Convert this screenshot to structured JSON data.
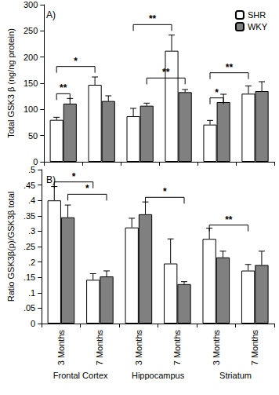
{
  "chart_data": [
    {
      "type": "bar",
      "panel": "A)",
      "y_label": "Total GSK3 β (ng/ng protein)",
      "categories": [
        "3 Months",
        "7 Months",
        "3 Months",
        "7 Months",
        "3 Months",
        "7 Months"
      ],
      "groups": [
        "Frontal Cortex",
        "Hippocampus",
        "Striatum"
      ],
      "series": [
        {
          "name": "SHR",
          "color": "#ffffff",
          "values": [
            80,
            147,
            87,
            212,
            71,
            130
          ],
          "errors": [
            5,
            15,
            15,
            30,
            8,
            15
          ]
        },
        {
          "name": "WKY",
          "color": "#808080",
          "values": [
            111,
            116,
            107,
            133,
            114,
            135
          ],
          "errors": [
            10,
            10,
            5,
            5,
            15,
            18
          ]
        }
      ],
      "ylim": [
        0,
        300
      ],
      "yticks": [
        0,
        50,
        100,
        150,
        200,
        250,
        300
      ],
      "grid": false,
      "legend": "upper right",
      "tick_labels": "y",
      "annotations": [
        {
          "text": "*",
          "from": [
            0,
            0
          ],
          "to": [
            1,
            0
          ],
          "y": 182
        },
        {
          "text": "**",
          "from": [
            0,
            0
          ],
          "to": [
            0,
            1
          ],
          "y": 130
        },
        {
          "text": "**",
          "from": [
            2,
            0
          ],
          "to": [
            3,
            0
          ],
          "y": 262
        },
        {
          "text": "**",
          "from": [
            2,
            1
          ],
          "to": [
            3,
            1
          ],
          "y": 160
        },
        {
          "text": "*",
          "from": [
            4,
            0
          ],
          "to": [
            4,
            1
          ],
          "y": 122
        },
        {
          "text": "**",
          "from": [
            4,
            0
          ],
          "to": [
            5,
            0
          ],
          "y": 170
        }
      ]
    },
    {
      "type": "bar",
      "panel": "B)",
      "y_label": "Ratio GSK3β(p)/GSK3β total",
      "categories": [
        "3 Months",
        "7 Months",
        "3 Months",
        "7 Months",
        "3 Months",
        "7 Months"
      ],
      "groups": [
        "Frontal Cortex",
        "Hippocampus",
        "Striatum"
      ],
      "series": [
        {
          "name": "SHR",
          "color": "#ffffff",
          "values": [
            0.4,
            0.142,
            0.312,
            0.195,
            0.275,
            0.172
          ],
          "errors": [
            0.045,
            0.02,
            0.03,
            0.08,
            0.035,
            0.02
          ]
        },
        {
          "name": "WKY",
          "color": "#808080",
          "values": [
            0.345,
            0.153,
            0.355,
            0.128,
            0.215,
            0.19
          ],
          "errors": [
            0.04,
            0.018,
            0.04,
            0.008,
            0.02,
            0.045
          ]
        }
      ],
      "ylim": [
        0,
        0.5
      ],
      "yticks": [
        0,
        {
          "value": 0.05,
          "label": ".05"
        },
        {
          "value": 0.1,
          "label": ".1"
        },
        {
          "value": 0.15,
          "label": ".15"
        },
        {
          "value": 0.2,
          "label": ".2"
        },
        {
          "value": 0.25,
          "label": ".25"
        },
        {
          "value": 0.3,
          "label": ".3"
        },
        {
          "value": 0.35,
          "label": ".35"
        },
        {
          "value": 0.4,
          "label": ".4"
        },
        {
          "value": 0.45,
          "label": ".45"
        },
        {
          "value": 0.5,
          "label": ".5"
        }
      ],
      "grid": false,
      "annotations": [
        {
          "text": "*",
          "from": [
            0,
            0
          ],
          "to": [
            1,
            0
          ],
          "y": 0.46
        },
        {
          "text": "*",
          "from": [
            0,
            1
          ],
          "to": [
            1,
            1
          ],
          "y": 0.42
        },
        {
          "text": "*",
          "from": [
            2,
            1
          ],
          "to": [
            3,
            1
          ],
          "y": 0.41
        },
        {
          "text": "**",
          "from": [
            4,
            0
          ],
          "to": [
            5,
            0
          ],
          "y": 0.32
        }
      ]
    }
  ]
}
